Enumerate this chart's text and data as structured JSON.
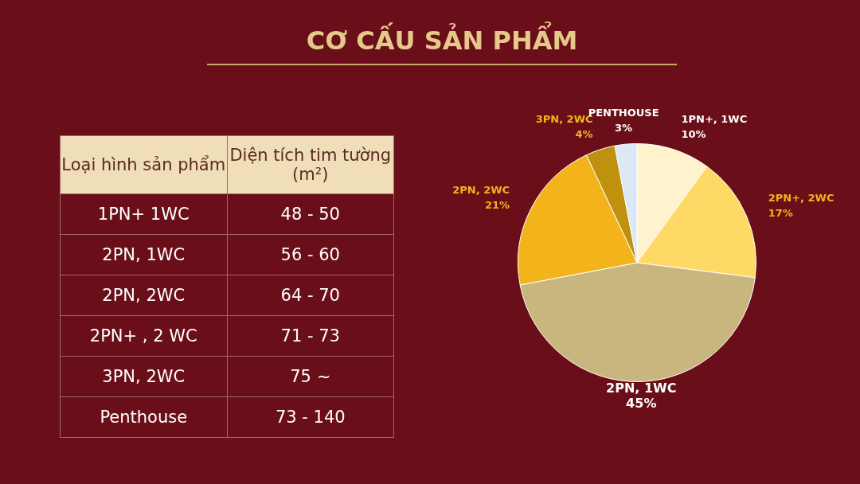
{
  "chart_data": [
    {
      "type": "other",
      "title": "CƠ CẤU SẢN PHẨM",
      "annotations": [
        "Loại hình sản phẩm",
        "Diện tích tim tường (m²)",
        "1PN+ 1WC",
        "48 - 50",
        "2PN, 1WC",
        "56 - 60",
        "2PN, 2WC",
        "64 - 70",
        "2PN+ , 2 WC",
        "71 - 73",
        "3PN, 2WC",
        "75 ~",
        "Penthouse",
        "73 - 140"
      ]
    },
    {
      "type": "pie",
      "categories": [
        "1PN+, 1WC",
        "2PN+, 2WC",
        "2PN, 1WC",
        "2PN, 2WC",
        "3PN, 2WC",
        "PENTHOUSE"
      ],
      "values": [
        10,
        17,
        45,
        21,
        4,
        3
      ],
      "value_labels": [
        "10%",
        "17%",
        "45%",
        "21%",
        "4%",
        "3%"
      ],
      "colors": [
        "#fff2cc",
        "#ffd966",
        "#c9b67e",
        "#f2b41a",
        "#c0900f",
        "#dce8f6"
      ],
      "legend": false
    }
  ]
}
